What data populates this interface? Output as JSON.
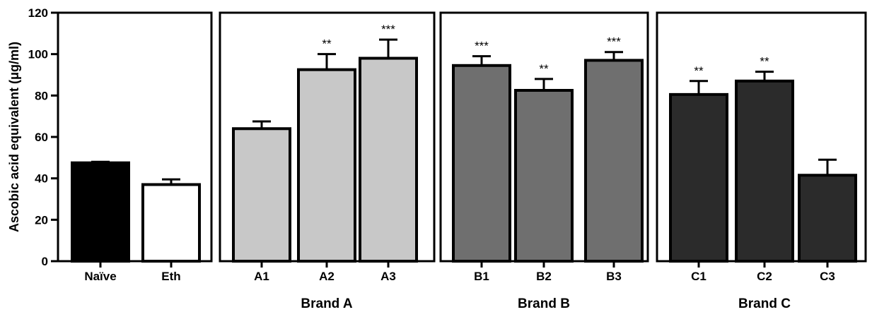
{
  "chart_data": {
    "type": "bar",
    "ylabel": "Ascobic acid equivalent (μg/ml)",
    "ylim": [
      0,
      120
    ],
    "yticks": [
      0,
      20,
      40,
      60,
      80,
      100,
      120
    ],
    "grid": false,
    "legend": "none",
    "panels": [
      {
        "group_label": "",
        "categories": [
          "Naïve",
          "Eth"
        ],
        "values": [
          47.5,
          37
        ],
        "errors": [
          0.5,
          2.5
        ],
        "significance": [
          "",
          ""
        ],
        "colors": [
          "#000000",
          "#ffffff"
        ]
      },
      {
        "group_label": "Brand A",
        "categories": [
          "A1",
          "A2",
          "A3"
        ],
        "values": [
          64,
          92.5,
          98
        ],
        "errors": [
          3.5,
          7.5,
          9
        ],
        "significance": [
          "",
          "**",
          "***"
        ],
        "colors": [
          "#c8c8c8",
          "#c8c8c8",
          "#c8c8c8"
        ]
      },
      {
        "group_label": "Brand B",
        "categories": [
          "B1",
          "B2",
          "B3"
        ],
        "values": [
          94.5,
          82.5,
          97
        ],
        "errors": [
          4.5,
          5.5,
          4
        ],
        "significance": [
          "***",
          "**",
          "***"
        ],
        "colors": [
          "#6f6f6f",
          "#6f6f6f",
          "#6f6f6f"
        ]
      },
      {
        "group_label": "Brand C",
        "categories": [
          "C1",
          "C2",
          "C3"
        ],
        "values": [
          80.5,
          87,
          41.5
        ],
        "errors": [
          6.5,
          4.5,
          7.5
        ],
        "significance": [
          "**",
          "**",
          ""
        ],
        "colors": [
          "#2b2b2b",
          "#2b2b2b",
          "#2b2b2b"
        ]
      }
    ]
  }
}
